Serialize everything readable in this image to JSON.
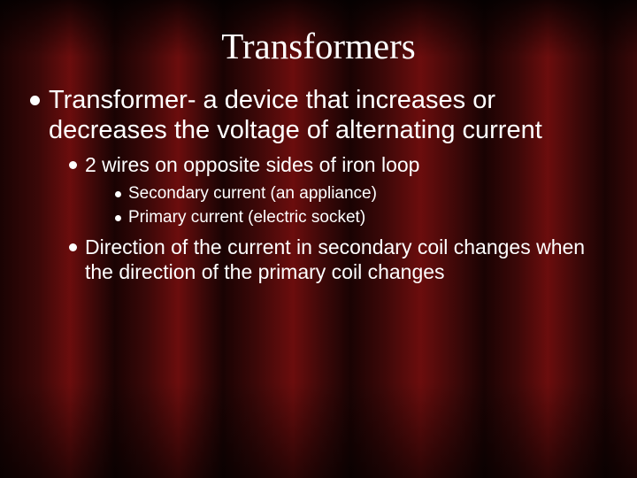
{
  "slide": {
    "title": "Transformers",
    "background": {
      "type": "curtain",
      "dark": "#1a0303",
      "mid": "#3a0808",
      "light": "#6b0d0d"
    },
    "text_color": "#ffffff",
    "title_font": "Times New Roman",
    "body_font": "Verdana",
    "title_fontsize": 41,
    "bullets": {
      "lvl1": [
        {
          "text": "Transformer- a device that increases or decreases the voltage of alternating current",
          "fontsize": 29
        }
      ],
      "lvl2_a": {
        "text": "2 wires on opposite sides of iron loop",
        "fontsize": 23
      },
      "lvl3": [
        {
          "text": "Secondary current (an appliance)",
          "fontsize": 19
        },
        {
          "text": "Primary current (electric socket)",
          "fontsize": 19
        }
      ],
      "lvl2_b": {
        "text": "Direction of the current in secondary coil changes when the direction of the primary coil changes",
        "fontsize": 23
      }
    }
  }
}
